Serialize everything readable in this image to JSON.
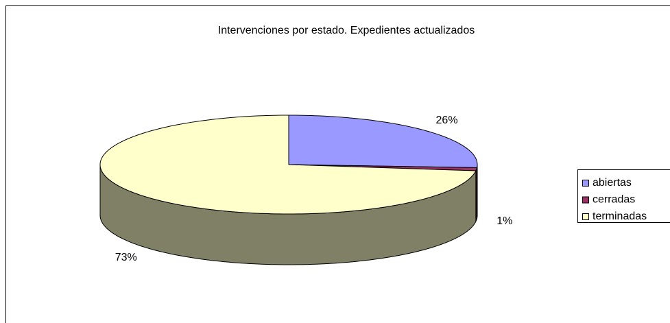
{
  "chart_data": {
    "type": "pie",
    "title": "Intervenciones por estado. Expedientes actualizados",
    "categories": [
      "abiertas",
      "cerradas",
      "terminadas"
    ],
    "values": [
      26,
      1,
      73
    ],
    "value_labels": [
      "26%",
      "1%",
      "73%"
    ],
    "colors": [
      "#9999ff",
      "#993366",
      "#ffffcc"
    ],
    "legend": "right"
  }
}
